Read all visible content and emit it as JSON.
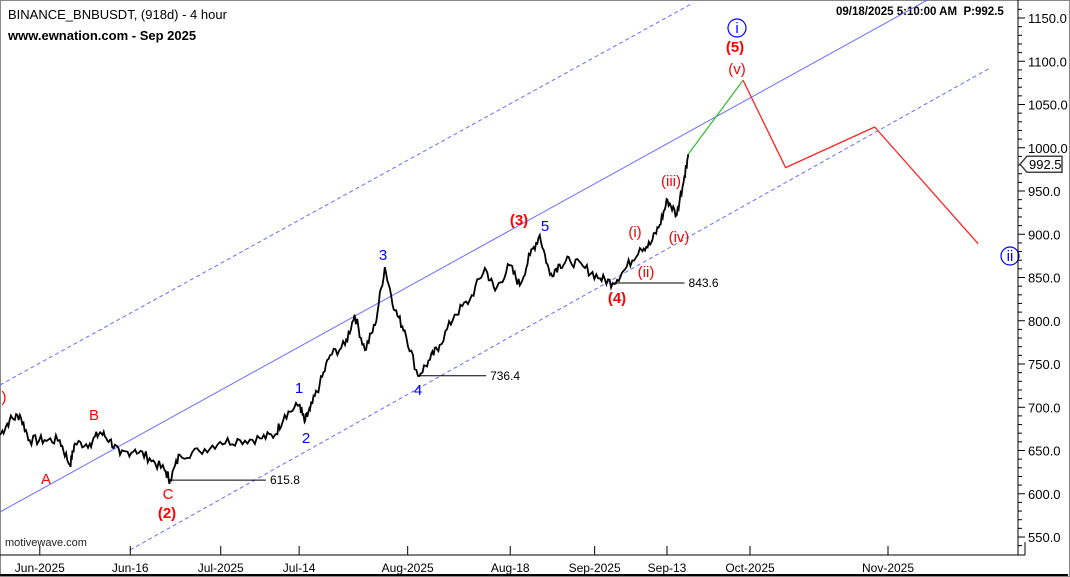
{
  "header": {
    "title": "BINANCE_BNBUSDT, (918d) - 4 hour",
    "source": "www.ewnation.com  - Sep 2025",
    "timestamp": "09/18/2025 5:10:00 AM",
    "price_readout": "P:992.5"
  },
  "watermark": "motivewave.com",
  "colors": {
    "price": "#000000",
    "wave_red": "#ff0000",
    "wave_blue": "#0000ff",
    "channel": "#6b6bff",
    "projection_up": "#33bb33",
    "projection": "#ff2222"
  },
  "chart_data": {
    "type": "line",
    "title": "BINANCE_BNBUSDT, (918d) - 4 hour",
    "xlabel": "",
    "ylabel": "",
    "x_units": "days since Jun 1, 2025",
    "ylim": [
      530,
      1165
    ],
    "y_ticks": [
      550,
      600,
      650,
      700,
      750,
      800,
      850,
      900,
      950,
      1000,
      1050,
      1100,
      1150
    ],
    "y_tick_labels": [
      "550.0",
      "600.0",
      "650.0",
      "700.0",
      "750.0",
      "800.0",
      "850.0",
      "900.0",
      "950.0",
      "1000.0",
      "1050.0",
      "1100.0",
      "1150.0"
    ],
    "x_ticks": [
      {
        "day": 0,
        "label": "Jun-2025"
      },
      {
        "day": 15,
        "label": "Jun-16"
      },
      {
        "day": 30,
        "label": "Jul-2025"
      },
      {
        "day": 43,
        "label": "Jul-14"
      },
      {
        "day": 61,
        "label": "Aug-2025"
      },
      {
        "day": 78,
        "label": "Aug-18"
      },
      {
        "day": 92,
        "label": "Sep-2025"
      },
      {
        "day": 104,
        "label": "Sep-13"
      },
      {
        "day": 122,
        "label": "Oct-2025"
      },
      {
        "day": 153,
        "label": "Nov-2025"
      }
    ],
    "series": [
      {
        "name": "BNBUSDT close",
        "x": [
          -6.6,
          -5,
          -3.3,
          -1.7,
          0.8,
          3.3,
          5,
          5.8,
          8.3,
          10,
          11.6,
          13.3,
          15.8,
          18.2,
          20.7,
          21.6,
          23.2,
          26.5,
          29.9,
          33.2,
          36.5,
          39,
          40.6,
          43.1,
          43.9,
          44.8,
          46.4,
          48.1,
          50.6,
          52.2,
          53.9,
          55.6,
          57.2,
          58.9,
          60.5,
          62.7,
          64.7,
          66.3,
          68.8,
          71.3,
          73.8,
          75.5,
          77.9,
          79.6,
          81.3,
          82.9,
          84.6,
          86.2,
          87.9,
          90.4,
          92.9,
          95,
          97,
          99.5,
          101.2,
          102.8,
          104.1,
          106.1,
          107.8,
          108.6
        ],
        "y": [
          668,
          685,
          691,
          662,
          662,
          662,
          633,
          658,
          658,
          671,
          662,
          645,
          651,
          641,
          627,
          615.8,
          645,
          649,
          660,
          662,
          664,
          668,
          691,
          703,
          683,
          697,
          726,
          760,
          772,
          807,
          766,
          795,
          862,
          812,
          789,
          736.4,
          755,
          772,
          807,
          824,
          861,
          835,
          864,
          841,
          876,
          899,
          853,
          865,
          870,
          861,
          849,
          843.6,
          859,
          884,
          888,
          911,
          940,
          922,
          968,
          992.5
        ]
      }
    ],
    "projection": {
      "up": {
        "x": [
          108.6,
          120.5
        ],
        "y": [
          992.5,
          1078
        ]
      },
      "path": {
        "x": [
          120.5,
          130,
          150,
          173
        ],
        "y": [
          1078,
          977,
          1024,
          889
        ]
      }
    },
    "current_price_label": "992.5",
    "levels": [
      {
        "price": 615.8,
        "label": "615.8"
      },
      {
        "price": 736.4,
        "label": "736.4"
      },
      {
        "price": 843.6,
        "label": "843.6"
      }
    ],
    "wave_labels": [
      {
        "text": ")",
        "color": "red",
        "bold": false
      },
      {
        "text": "A",
        "color": "red",
        "bold": false
      },
      {
        "text": "B",
        "color": "red",
        "bold": false
      },
      {
        "text": "C",
        "color": "red",
        "bold": false
      },
      {
        "text": "(2)",
        "color": "red",
        "bold": true
      },
      {
        "text": "1",
        "color": "blue",
        "bold": false
      },
      {
        "text": "2",
        "color": "blue",
        "bold": false
      },
      {
        "text": "3",
        "color": "blue",
        "bold": false
      },
      {
        "text": "4",
        "color": "blue",
        "bold": false
      },
      {
        "text": "(3)",
        "color": "red",
        "bold": true
      },
      {
        "text": "5",
        "color": "blue",
        "bold": false
      },
      {
        "text": "(4)",
        "color": "red",
        "bold": true
      },
      {
        "text": "(i)",
        "color": "red",
        "bold": false
      },
      {
        "text": "(ii)",
        "color": "red",
        "bold": false
      },
      {
        "text": "(iii)",
        "color": "red",
        "bold": false
      },
      {
        "text": "(iv)",
        "color": "red",
        "bold": false
      },
      {
        "text": "(v)",
        "color": "red",
        "bold": false
      },
      {
        "text": "(5)",
        "color": "red",
        "bold": true
      },
      {
        "text": "i",
        "color": "blue",
        "bold": false,
        "circled": true
      },
      {
        "text": "ii",
        "color": "blue",
        "bold": false,
        "circled": true
      }
    ]
  }
}
